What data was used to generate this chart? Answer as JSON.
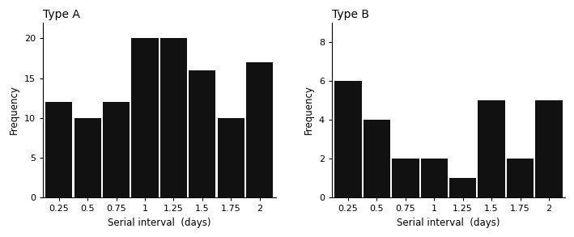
{
  "type_a": {
    "title": "Type A",
    "categories": [
      0.25,
      0.5,
      0.75,
      1.0,
      1.25,
      1.5,
      1.75,
      2.0
    ],
    "values": [
      12,
      10,
      12,
      20,
      20,
      16,
      10,
      17
    ],
    "ylim": [
      0,
      22
    ],
    "yticks": [
      0,
      5,
      10,
      15,
      20
    ],
    "ytick_labels": [
      "0",
      "5",
      "10",
      "15",
      "20"
    ],
    "xtick_labels": [
      "0.25",
      "0.5",
      "0.75",
      "1",
      "1.25",
      "1.5",
      "1.75",
      "2"
    ],
    "bar_color": "#111111",
    "xlabel": "Serial interval  (days)",
    "ylabel": "Frequency"
  },
  "type_b": {
    "title": "Type B",
    "categories": [
      0.25,
      0.5,
      0.75,
      1.0,
      1.25,
      1.5,
      1.75,
      2.0
    ],
    "values": [
      6,
      4,
      2,
      2,
      1,
      5,
      2,
      5
    ],
    "ylim": [
      0,
      9
    ],
    "yticks": [
      0,
      2,
      4,
      6,
      8
    ],
    "ytick_labels": [
      "0",
      "2",
      "4",
      "6",
      "8"
    ],
    "xtick_labels": [
      "0.25",
      "0.5",
      "0.75",
      "1",
      "1.25",
      "1.5",
      "1.75",
      "2"
    ],
    "bar_color": "#111111",
    "xlabel": "Serial interval  (days)",
    "ylabel": "Frequency"
  },
  "bar_width": 0.235,
  "background_color": "#ffffff",
  "title_fontsize": 10,
  "label_fontsize": 8.5,
  "tick_fontsize": 8
}
